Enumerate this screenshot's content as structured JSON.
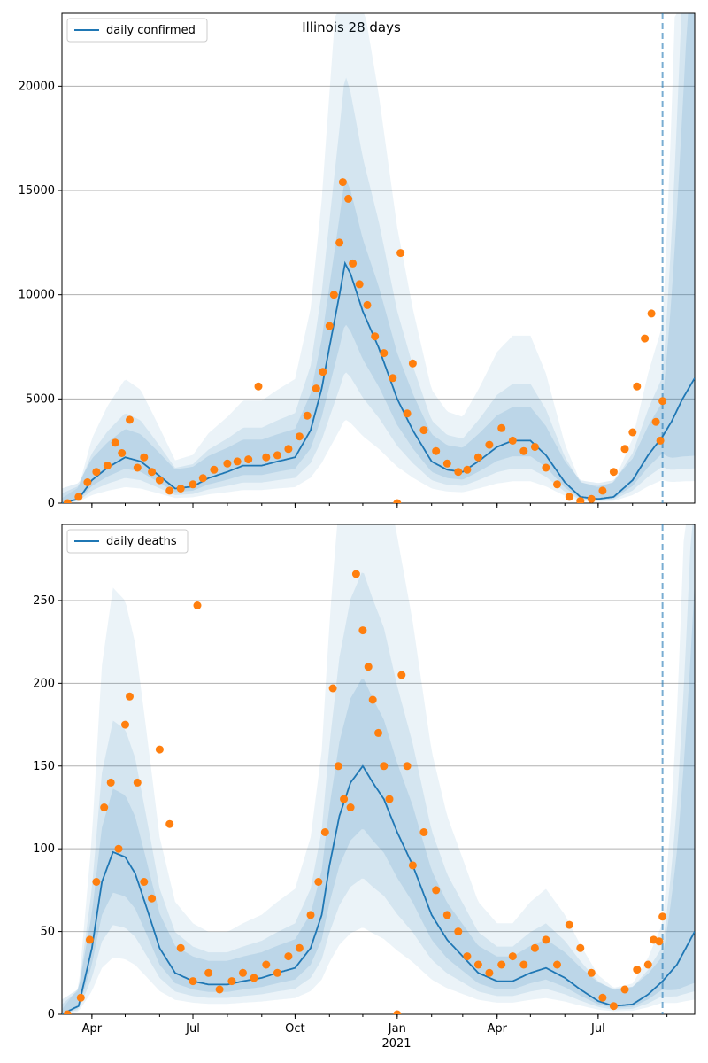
{
  "figure": {
    "title": "Illinois 28 days",
    "x_tick_labels": [
      "Apr",
      "Jul",
      "Oct",
      "Jan",
      "Apr",
      "Jul"
    ],
    "x_year_label": "2021"
  },
  "colors": {
    "line": "#1f77b4",
    "points": "#ff7f0e",
    "band": "#1f77b4",
    "grid": "#b0b0b0",
    "vline": "#1f77b4"
  },
  "chart_data": [
    {
      "type": "line",
      "panel": "top",
      "legend": [
        "daily confirmed"
      ],
      "x_range": [
        "2020-03-05",
        "2021-09-26"
      ],
      "ylim": [
        0,
        23500
      ],
      "y_ticks": [
        0,
        5000,
        10000,
        15000,
        20000
      ],
      "grid": "horizontal",
      "legend_position": "top-left",
      "forecast_start": "2021-08-28",
      "series": [
        {
          "kind": "line",
          "x": [
            "2020-03-05",
            "2020-03-20",
            "2020-04-01",
            "2020-04-15",
            "2020-05-01",
            "2020-05-15",
            "2020-06-01",
            "2020-06-15",
            "2020-07-01",
            "2020-07-15",
            "2020-08-01",
            "2020-08-15",
            "2020-09-01",
            "2020-09-15",
            "2020-10-01",
            "2020-10-15",
            "2020-10-25",
            "2020-11-01",
            "2020-11-10",
            "2020-11-15",
            "2020-11-20",
            "2020-12-01",
            "2020-12-15",
            "2021-01-01",
            "2021-01-15",
            "2021-02-01",
            "2021-02-15",
            "2021-03-01",
            "2021-03-15",
            "2021-04-01",
            "2021-04-15",
            "2021-05-01",
            "2021-05-15",
            "2021-06-01",
            "2021-06-15",
            "2021-07-01",
            "2021-07-15",
            "2021-08-01",
            "2021-08-15",
            "2021-08-28",
            "2021-09-05",
            "2021-09-15",
            "2021-09-26"
          ],
          "y": [
            0,
            200,
            1100,
            1700,
            2200,
            2000,
            1300,
            700,
            800,
            1200,
            1500,
            1800,
            1800,
            2000,
            2200,
            3500,
            5500,
            7500,
            10000,
            11500,
            11000,
            9200,
            7500,
            5000,
            3500,
            2000,
            1600,
            1500,
            2000,
            2700,
            3000,
            3000,
            2300,
            1000,
            300,
            200,
            300,
            1100,
            2300,
            3200,
            3900,
            5000,
            6000
          ]
        },
        {
          "kind": "scatter",
          "x": [
            "2020-03-10",
            "2020-03-20",
            "2020-03-28",
            "2020-04-05",
            "2020-04-15",
            "2020-04-22",
            "2020-04-28",
            "2020-05-05",
            "2020-05-12",
            "2020-05-18",
            "2020-05-25",
            "2020-06-01",
            "2020-06-10",
            "2020-06-20",
            "2020-07-01",
            "2020-07-10",
            "2020-07-20",
            "2020-08-01",
            "2020-08-10",
            "2020-08-20",
            "2020-08-29",
            "2020-09-05",
            "2020-09-15",
            "2020-09-25",
            "2020-10-05",
            "2020-10-12",
            "2020-10-20",
            "2020-10-26",
            "2020-11-01",
            "2020-11-05",
            "2020-11-10",
            "2020-11-13",
            "2020-11-18",
            "2020-11-22",
            "2020-11-28",
            "2020-12-05",
            "2020-12-12",
            "2020-12-20",
            "2020-12-28",
            "2021-01-01",
            "2021-01-04",
            "2021-01-10",
            "2021-01-15",
            "2021-01-25",
            "2021-02-05",
            "2021-02-15",
            "2021-02-25",
            "2021-03-05",
            "2021-03-15",
            "2021-03-25",
            "2021-04-05",
            "2021-04-15",
            "2021-04-25",
            "2021-05-05",
            "2021-05-15",
            "2021-05-25",
            "2021-06-05",
            "2021-06-15",
            "2021-06-25",
            "2021-07-05",
            "2021-07-15",
            "2021-07-25",
            "2021-08-01",
            "2021-08-05",
            "2021-08-12",
            "2021-08-18",
            "2021-08-22",
            "2021-08-26",
            "2021-08-28"
          ],
          "y": [
            0,
            300,
            1000,
            1500,
            1800,
            2900,
            2400,
            4000,
            1700,
            2200,
            1500,
            1100,
            600,
            700,
            900,
            1200,
            1600,
            1900,
            2000,
            2100,
            5600,
            2200,
            2300,
            2600,
            3200,
            4200,
            5500,
            6300,
            8500,
            10000,
            12500,
            15400,
            14600,
            11500,
            10500,
            9500,
            8000,
            7200,
            6000,
            0,
            12000,
            4300,
            6700,
            3500,
            2500,
            1900,
            1500,
            1600,
            2200,
            2800,
            3600,
            3000,
            2500,
            2700,
            1700,
            900,
            300,
            100,
            200,
            600,
            1500,
            2600,
            3400,
            5600,
            7900,
            9100,
            3900,
            3000,
            4900
          ]
        }
      ]
    },
    {
      "type": "line",
      "panel": "bottom",
      "legend": [
        "daily deaths"
      ],
      "x_range": [
        "2020-03-05",
        "2021-09-26"
      ],
      "ylim": [
        0,
        296
      ],
      "y_ticks": [
        0,
        50,
        100,
        150,
        200,
        250
      ],
      "grid": "horizontal",
      "legend_position": "top-left",
      "forecast_start": "2021-08-28",
      "series": [
        {
          "kind": "line",
          "x": [
            "2020-03-05",
            "2020-03-20",
            "2020-04-01",
            "2020-04-10",
            "2020-04-20",
            "2020-05-01",
            "2020-05-10",
            "2020-05-20",
            "2020-06-01",
            "2020-06-15",
            "2020-07-01",
            "2020-07-15",
            "2020-08-01",
            "2020-08-15",
            "2020-09-01",
            "2020-09-15",
            "2020-10-01",
            "2020-10-15",
            "2020-10-25",
            "2020-11-01",
            "2020-11-10",
            "2020-11-20",
            "2020-12-01",
            "2020-12-10",
            "2020-12-20",
            "2021-01-01",
            "2021-01-15",
            "2021-02-01",
            "2021-02-15",
            "2021-03-01",
            "2021-03-15",
            "2021-04-01",
            "2021-04-15",
            "2021-05-01",
            "2021-05-15",
            "2021-06-01",
            "2021-06-15",
            "2021-07-01",
            "2021-07-15",
            "2021-08-01",
            "2021-08-15",
            "2021-08-28",
            "2021-09-10",
            "2021-09-26"
          ],
          "y": [
            0,
            5,
            40,
            80,
            98,
            95,
            85,
            65,
            40,
            25,
            20,
            18,
            18,
            20,
            22,
            25,
            28,
            40,
            60,
            90,
            120,
            140,
            150,
            140,
            130,
            110,
            90,
            60,
            45,
            35,
            25,
            20,
            20,
            25,
            28,
            22,
            15,
            8,
            5,
            6,
            12,
            20,
            30,
            50
          ]
        },
        {
          "kind": "scatter",
          "x": [
            "2020-03-10",
            "2020-03-22",
            "2020-03-30",
            "2020-04-05",
            "2020-04-12",
            "2020-04-18",
            "2020-04-25",
            "2020-05-01",
            "2020-05-05",
            "2020-05-12",
            "2020-05-18",
            "2020-05-25",
            "2020-06-01",
            "2020-06-10",
            "2020-06-20",
            "2020-07-01",
            "2020-07-05",
            "2020-07-15",
            "2020-07-25",
            "2020-08-05",
            "2020-08-15",
            "2020-08-25",
            "2020-09-05",
            "2020-09-15",
            "2020-09-25",
            "2020-10-05",
            "2020-10-15",
            "2020-10-22",
            "2020-10-28",
            "2020-11-04",
            "2020-11-09",
            "2020-11-14",
            "2020-11-20",
            "2020-11-25",
            "2020-12-01",
            "2020-12-06",
            "2020-12-10",
            "2020-12-15",
            "2020-12-20",
            "2020-12-25",
            "2021-01-01",
            "2021-01-05",
            "2021-01-10",
            "2021-01-15",
            "2021-01-25",
            "2021-02-05",
            "2021-02-15",
            "2021-02-25",
            "2021-03-05",
            "2021-03-15",
            "2021-03-25",
            "2021-04-05",
            "2021-04-15",
            "2021-04-25",
            "2021-05-05",
            "2021-05-15",
            "2021-05-25",
            "2021-06-05",
            "2021-06-15",
            "2021-06-25",
            "2021-07-05",
            "2021-07-15",
            "2021-07-25",
            "2021-08-05",
            "2021-08-15",
            "2021-08-20",
            "2021-08-25",
            "2021-08-28"
          ],
          "y": [
            0,
            10,
            45,
            80,
            125,
            140,
            100,
            175,
            192,
            140,
            80,
            70,
            160,
            115,
            40,
            20,
            247,
            25,
            15,
            20,
            25,
            22,
            30,
            25,
            35,
            40,
            60,
            80,
            110,
            197,
            150,
            130,
            125,
            266,
            232,
            210,
            190,
            170,
            150,
            130,
            0,
            205,
            150,
            90,
            110,
            75,
            60,
            50,
            35,
            30,
            25,
            30,
            35,
            30,
            40,
            45,
            30,
            54,
            40,
            25,
            10,
            5,
            15,
            27,
            30,
            45,
            44,
            59
          ]
        }
      ]
    }
  ]
}
